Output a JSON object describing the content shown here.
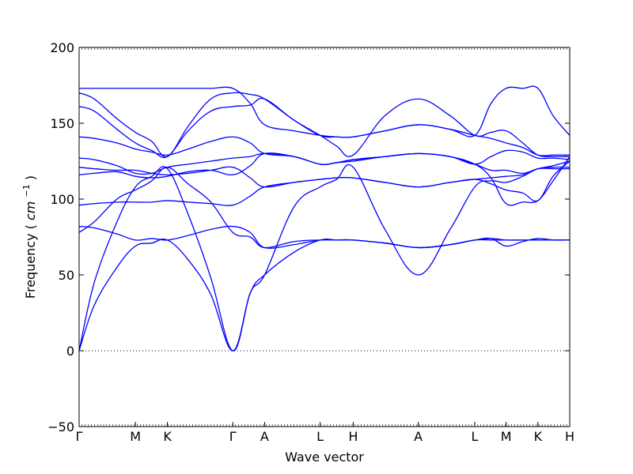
{
  "chart_data": {
    "type": "line",
    "title": "",
    "xlabel": "Wave vector",
    "ylabel": "Frequency",
    "ylabel_unit_math": "cm",
    "ylabel_unit_exp": "−1",
    "ylim": [
      -50,
      200
    ],
    "yticks": [
      -50,
      0,
      50,
      100,
      150,
      200
    ],
    "grid": false,
    "legend": "none",
    "line_color": "#0000ff",
    "zero_line_color": "#000000",
    "kpoints": [
      {
        "label": "Γ",
        "x": 0
      },
      {
        "label": "M",
        "x": 3.717
      },
      {
        "label": "K",
        "x": 5.833
      },
      {
        "label": "Γ",
        "x": 10.15
      },
      {
        "label": "A",
        "x": 12.25
      },
      {
        "label": "L",
        "x": 15.92
      },
      {
        "label": "H",
        "x": 18.1
      },
      {
        "label": "A",
        "x": 22.4
      },
      {
        "label": "L",
        "x": 26.13
      },
      {
        "label": "M",
        "x": 28.2
      },
      {
        "label": "K",
        "x": 30.3
      },
      {
        "label": "H",
        "x": 32.4
      }
    ],
    "series": [
      {
        "x": [
          0,
          1,
          2.5,
          3.72,
          4.8,
          5.83,
          7.2,
          8.7,
          10.15,
          11.3,
          12.25,
          14.2,
          15.92,
          17,
          18.1,
          20.2,
          22.4,
          24.5,
          26.13,
          27.2,
          28.2,
          29.3,
          30.3,
          31.3,
          32.4
        ],
        "y": [
          0,
          30,
          55,
          69,
          71,
          73,
          60,
          37,
          0,
          38,
          50,
          65,
          73,
          73,
          73,
          71,
          68,
          70,
          73,
          73,
          73,
          73,
          73,
          73,
          73
        ]
      },
      {
        "x": [
          0,
          1,
          2.5,
          3.72,
          4.8,
          5.83,
          7.2,
          8.7,
          10.15,
          11.3,
          12.25,
          14.2,
          15.92,
          17,
          18.1,
          20.2,
          22.4,
          24.5,
          26.13,
          27.2,
          28.2,
          29.3,
          30.3,
          31.3,
          32.4
        ],
        "y": [
          0,
          45,
          85,
          108,
          115,
          120,
          90,
          48,
          0,
          38,
          50,
          95,
          108,
          113,
          121,
          80,
          50,
          80,
          108,
          112,
          111,
          115,
          120,
          121,
          121
        ]
      },
      {
        "x": [
          0,
          1,
          2.5,
          3.72,
          4.8,
          5.83,
          7.2,
          8.7,
          10.15,
          11.3,
          12.25,
          14.2,
          15.92,
          17,
          18.1,
          20.2,
          22.4,
          24.5,
          26.13,
          27.2,
          28.2,
          29.3,
          30.3,
          31.3,
          32.4
        ],
        "y": [
          82,
          81,
          77,
          73,
          74,
          73,
          76,
          80,
          82,
          78,
          68,
          70,
          73,
          73,
          73,
          71,
          68,
          70,
          73,
          74,
          69,
          72,
          74,
          73,
          73
        ]
      },
      {
        "x": [
          0,
          1,
          2.5,
          3.72,
          4.8,
          5.83,
          7.2,
          8.7,
          10.15,
          11.3,
          12.25,
          14.2,
          15.92,
          17,
          18.1,
          20.2,
          22.4,
          24.5,
          26.13,
          27.2,
          28.2,
          29.3,
          30.3,
          31.3,
          32.4
        ],
        "y": [
          78,
          85,
          100,
          106,
          112,
          121,
          110,
          98,
          78,
          75,
          68,
          72,
          73,
          73,
          73,
          71,
          68,
          70,
          73,
          74,
          73,
          73,
          73,
          73,
          73
        ]
      },
      {
        "x": [
          0,
          1,
          2.5,
          3.72,
          4.8,
          5.83,
          7.2,
          8.7,
          10.15,
          11.3,
          12.25,
          14.2,
          15.92,
          17,
          18.1,
          20.2,
          22.4,
          24.5,
          26.13,
          27.2,
          28.2,
          29.3,
          30.3,
          31.3,
          32.4
        ],
        "y": [
          96,
          97,
          98,
          98,
          98,
          99,
          98,
          97,
          96,
          102,
          108,
          111,
          113,
          114,
          114,
          111,
          108,
          111,
          113,
          110,
          106,
          104,
          99,
          115,
          125
        ]
      },
      {
        "x": [
          0,
          1,
          2.5,
          3.72,
          4.8,
          5.83,
          7.2,
          8.7,
          10.15,
          11.3,
          12.25,
          14.2,
          15.92,
          17,
          18.1,
          20.2,
          22.4,
          24.5,
          26.13,
          27.2,
          28.2,
          29.3,
          30.3,
          31.3,
          32.4
        ],
        "y": [
          116,
          117,
          118,
          115,
          114,
          115,
          118,
          119,
          116,
          122,
          130,
          128,
          123,
          124,
          125,
          128,
          130,
          128,
          123,
          114,
          97,
          98,
          99,
          112,
          128
        ]
      },
      {
        "x": [
          0,
          1,
          2.5,
          3.72,
          4.8,
          5.83,
          7.2,
          8.7,
          10.15,
          11.3,
          12.25,
          14.2,
          15.92,
          17,
          18.1,
          20.2,
          22.4,
          24.5,
          26.13,
          27.2,
          28.2,
          29.3,
          30.3,
          31.3,
          32.4
        ],
        "y": [
          121,
          120,
          119,
          119,
          117,
          116,
          117,
          119,
          121,
          114,
          108,
          111,
          113,
          114,
          114,
          111,
          108,
          111,
          113,
          114,
          115,
          116,
          120,
          120,
          120
        ]
      },
      {
        "x": [
          0,
          1,
          2.5,
          3.72,
          4.8,
          5.83,
          7.2,
          8.7,
          10.15,
          11.3,
          12.25,
          14.2,
          15.92,
          17,
          18.1,
          20.2,
          22.4,
          24.5,
          26.13,
          27.2,
          28.2,
          29.3,
          30.3,
          31.3,
          32.4
        ],
        "y": [
          127,
          126,
          122,
          117,
          117,
          121,
          123,
          125,
          127,
          128,
          130,
          128,
          123,
          124,
          126,
          128,
          130,
          128,
          123,
          119,
          119,
          117,
          120,
          122,
          125
        ]
      },
      {
        "x": [
          0,
          1,
          2.5,
          3.72,
          4.8,
          5.83,
          7.2,
          8.7,
          10.15,
          11.3,
          12.25,
          14.2,
          15.92,
          17,
          18.1,
          20.2,
          22.4,
          24.5,
          26.13,
          27.2,
          28.2,
          29.3,
          30.3,
          31.3,
          32.4
        ],
        "y": [
          141,
          140,
          137,
          133,
          131,
          129,
          133,
          138,
          141,
          137,
          130,
          128,
          123,
          124,
          126,
          128,
          130,
          128,
          123,
          128,
          132,
          131,
          127,
          127,
          126
        ]
      },
      {
        "x": [
          0,
          1,
          2.5,
          3.72,
          4.8,
          5.83,
          7.2,
          8.7,
          10.15,
          11.3,
          12.25,
          14.2,
          15.92,
          17,
          18.1,
          20.2,
          22.4,
          24.5,
          26.13,
          27.2,
          28.2,
          29.3,
          30.3,
          31.3,
          32.4
        ],
        "y": [
          161,
          158,
          146,
          137,
          132,
          128,
          145,
          158,
          161,
          162,
          166,
          152,
          142,
          141,
          141,
          145,
          149,
          146,
          142,
          140,
          137,
          134,
          129,
          129,
          129
        ]
      },
      {
        "x": [
          0,
          1,
          2.5,
          3.72,
          4.8,
          5.83,
          7.2,
          8.7,
          10.15,
          11.3,
          12.25,
          14.2,
          15.92,
          17,
          18.1,
          20.2,
          22.4,
          24.5,
          26.13,
          27.2,
          28.2,
          29.3,
          30.3,
          31.3,
          32.4
        ],
        "y": [
          170,
          166,
          153,
          144,
          138,
          128,
          148,
          166,
          170,
          169,
          166,
          152,
          142,
          135,
          129,
          155,
          166,
          155,
          142,
          144,
          145,
          137,
          129,
          128,
          128
        ]
      },
      {
        "x": [
          0,
          1,
          2.5,
          3.72,
          4.8,
          5.83,
          7.2,
          8.7,
          10.15,
          11.3,
          12.25,
          14.2,
          15.92,
          17,
          18.1,
          20.2,
          22.4,
          24.5,
          26.13,
          27.2,
          28.2,
          29.3,
          30.3,
          31.3,
          32.4
        ],
        "y": [
          173,
          173,
          173,
          173,
          173,
          173,
          173,
          173,
          173,
          163,
          149,
          145,
          142,
          141,
          141,
          145,
          149,
          146,
          142,
          163,
          173,
          173,
          173,
          155,
          142
        ]
      }
    ]
  }
}
